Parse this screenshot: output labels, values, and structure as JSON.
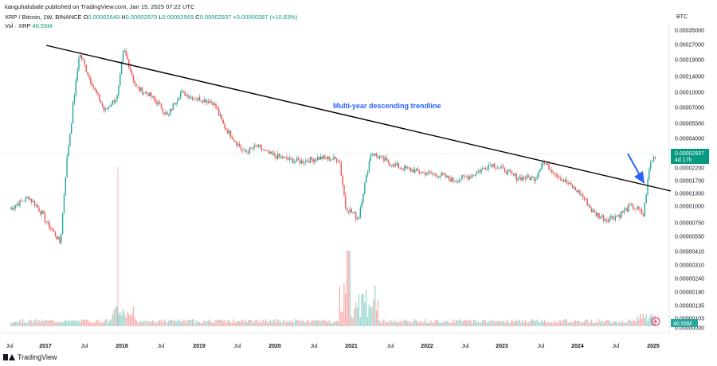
{
  "header": {
    "publisher": "kanguhalubale published on TradingView.com, Jan 15, 2025 07:22 UTC",
    "symbol": "XRP / Bitcoin, 1W, BINANCE",
    "ohlc": {
      "o_label": "O",
      "o": "0.00002649",
      "h_label": "H",
      "h": "0.00002970",
      "l_label": "L",
      "l": "0.00002569",
      "c_label": "C",
      "c": "0.00002937",
      "change": "+0.00000287 (+10.83%)"
    },
    "vol_label": "Vol · XRP",
    "vol_value": "46.55M"
  },
  "price_axis_currency": "BTC",
  "footer": {
    "brand": "TradingView"
  },
  "colors": {
    "up": "#26a69a",
    "down": "#ef5350",
    "trendline": "#000000",
    "annotation": "#2962ff",
    "last_price_badge": "#089981"
  },
  "chart_data": {
    "type": "candlestick",
    "title": "XRP / Bitcoin, 1W, BINANCE",
    "y_scale": "log",
    "y_ticks": [
      "0.00035000",
      "0.00027000",
      "0.00019000",
      "0.00014000",
      "0.00010000",
      "0.00007000",
      "0.00005500",
      "0.00004000",
      "0.00002937",
      "0.00002200",
      "0.00001700",
      "0.00001300",
      "0.00001000",
      "0.00000750",
      "0.00000550",
      "0.00000410",
      "0.00000310",
      "0.00000240",
      "0.00000180",
      "0.00000135",
      "0.00000103",
      "0.00000000"
    ],
    "x_ticks": [
      "Jul",
      "2017",
      "Jul",
      "2018",
      "Jul",
      "2019",
      "Jul",
      "2020",
      "Jul",
      "2021",
      "Jul",
      "2022",
      "Jul",
      "2023",
      "Jul",
      "2024",
      "Jul",
      "2025"
    ],
    "last_price_label": "0.00002937",
    "last_price_countdown": "4d 17h",
    "volume_label": "46.55M",
    "annotation": "Multi-year descending trendline",
    "price_path": [
      [
        "2016-07",
        9.5e-06
      ],
      [
        "2016-10",
        1.2e-05
      ],
      [
        "2016-12",
        9e-06
      ],
      [
        "2017-03",
        4.8e-06
      ],
      [
        "2017-04",
        2.5e-05
      ],
      [
        "2017-05",
        7.5e-05
      ],
      [
        "2017-06",
        0.00022
      ],
      [
        "2017-08",
        0.00012
      ],
      [
        "2017-10",
        6.5e-05
      ],
      [
        "2017-12",
        9e-05
      ],
      [
        "2018-01",
        0.00024
      ],
      [
        "2018-03",
        0.00011
      ],
      [
        "2018-05",
        9.5e-05
      ],
      [
        "2018-08",
        6e-05
      ],
      [
        "2018-10",
        0.0001
      ],
      [
        "2018-12",
        8.8e-05
      ],
      [
        "2019-03",
        8e-05
      ],
      [
        "2019-05",
        5e-05
      ],
      [
        "2019-08",
        3e-05
      ],
      [
        "2019-10",
        3.4e-05
      ],
      [
        "2019-12",
        2.9e-05
      ],
      [
        "2020-03",
        2.6e-05
      ],
      [
        "2020-05",
        2.5e-05
      ],
      [
        "2020-08",
        2.7e-05
      ],
      [
        "2020-11",
        2.6e-05
      ],
      [
        "2020-12",
        1e-05
      ],
      [
        "2021-02",
        8e-06
      ],
      [
        "2021-04",
        3e-05
      ],
      [
        "2021-07",
        2.4e-05
      ],
      [
        "2021-09",
        2.2e-05
      ],
      [
        "2021-12",
        2e-05
      ],
      [
        "2022-03",
        1.9e-05
      ],
      [
        "2022-05",
        1.7e-05
      ],
      [
        "2022-08",
        1.9e-05
      ],
      [
        "2022-11",
        2.4e-05
      ],
      [
        "2023-01",
        2.1e-05
      ],
      [
        "2023-03",
        1.8e-05
      ],
      [
        "2023-06",
        1.8e-05
      ],
      [
        "2023-07",
        2.5e-05
      ],
      [
        "2023-09",
        2e-05
      ],
      [
        "2023-11",
        1.6e-05
      ],
      [
        "2024-01",
        1.3e-05
      ],
      [
        "2024-03",
        9e-06
      ],
      [
        "2024-05",
        8e-06
      ],
      [
        "2024-07",
        8.5e-06
      ],
      [
        "2024-09",
        1e-05
      ],
      [
        "2024-10",
        9.5e-06
      ],
      [
        "2024-11",
        8.5e-06
      ],
      [
        "2024-12",
        2.4e-05
      ],
      [
        "2025-01",
        2.937e-05
      ]
    ],
    "trendline": [
      [
        "2016-12",
        0.0003
      ],
      [
        "2025-01",
        1.45e-05
      ]
    ]
  }
}
